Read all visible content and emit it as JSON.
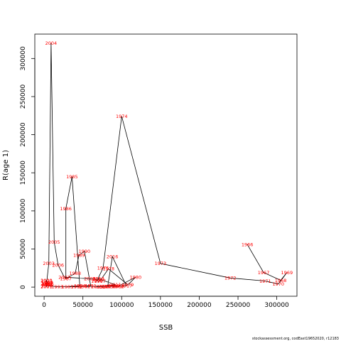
{
  "caption": "stockassessment.org, codEast19652020, r12183",
  "chart_data": {
    "type": "line",
    "xlabel": "SSB",
    "ylabel": "R(age 1)",
    "xlim": [
      -12000,
      326000
    ],
    "ylim": [
      -12000,
      332000
    ],
    "x_ticks": [
      0,
      50000,
      100000,
      150000,
      200000,
      250000,
      300000
    ],
    "x_tick_labels": [
      "0",
      "50000",
      "100000",
      "150000",
      "200000",
      "250000",
      "300000"
    ],
    "y_ticks": [
      0,
      50000,
      100000,
      150000,
      200000,
      250000,
      300000
    ],
    "y_tick_labels": [
      "0",
      "50000",
      "100000",
      "150000",
      "200000",
      "250000",
      "300000"
    ],
    "line_color": "#000000",
    "label_color": "#ff0000",
    "points": [
      {
        "year": "1966",
        "ssb": 262000,
        "r": 56000
      },
      {
        "year": "1967",
        "ssb": 283000,
        "r": 19000
      },
      {
        "year": "1968",
        "ssb": 305000,
        "r": 9000
      },
      {
        "year": "1969",
        "ssb": 313000,
        "r": 19000
      },
      {
        "year": "1970",
        "ssb": 302000,
        "r": 4000
      },
      {
        "year": "1971",
        "ssb": 285000,
        "r": 8000
      },
      {
        "year": "1972",
        "ssb": 240000,
        "r": 12000
      },
      {
        "year": "1973",
        "ssb": 150000,
        "r": 31000
      },
      {
        "year": "1974",
        "ssb": 100000,
        "r": 224000
      },
      {
        "year": "1975",
        "ssb": 76000,
        "r": 25000
      },
      {
        "year": "1976",
        "ssb": 68000,
        "r": 8000
      },
      {
        "year": "1977",
        "ssb": 72000,
        "r": 8000
      },
      {
        "year": "1978",
        "ssb": 83000,
        "r": 24000
      },
      {
        "year": "1979",
        "ssb": 108000,
        "r": 3000
      },
      {
        "year": "1980",
        "ssb": 118000,
        "r": 13000
      },
      {
        "year": "1981",
        "ssb": 95000,
        "r": 1000
      },
      {
        "year": "1982",
        "ssb": 52000,
        "r": 1000
      },
      {
        "year": "1983",
        "ssb": 30000,
        "r": 500
      },
      {
        "year": "1984",
        "ssb": 46000,
        "r": 2000
      },
      {
        "year": "1985",
        "ssb": 36000,
        "r": 145000
      },
      {
        "year": "1986",
        "ssb": 28000,
        "r": 103000
      },
      {
        "year": "1987",
        "ssb": 28000,
        "r": 11000
      },
      {
        "year": "1988",
        "ssb": 40000,
        "r": 18000
      },
      {
        "year": "1989",
        "ssb": 45000,
        "r": 42000
      },
      {
        "year": "1990",
        "ssb": 52000,
        "r": 47000
      },
      {
        "year": "1991",
        "ssb": 60000,
        "r": 2000
      },
      {
        "year": "1992",
        "ssb": 42000,
        "r": 500
      },
      {
        "year": "1993",
        "ssb": 17000,
        "r": 500
      },
      {
        "year": "1994",
        "ssb": 3000,
        "r": 2000
      },
      {
        "year": "1995",
        "ssb": 4000,
        "r": 3000
      },
      {
        "year": "1996",
        "ssb": 5000,
        "r": 4000
      },
      {
        "year": "1997",
        "ssb": 4000,
        "r": 5000
      },
      {
        "year": "1998",
        "ssb": 4000,
        "r": 6000
      },
      {
        "year": "1999",
        "ssb": 3000,
        "r": 8000
      },
      {
        "year": "2000",
        "ssb": 3000,
        "r": 9000
      },
      {
        "year": "2001",
        "ssb": 3000,
        "r": 500
      },
      {
        "year": "2002",
        "ssb": 3000,
        "r": 4000
      },
      {
        "year": "2003",
        "ssb": 6000,
        "r": 31000
      },
      {
        "year": "2004",
        "ssb": 9000,
        "r": 320000
      },
      {
        "year": "2005",
        "ssb": 13000,
        "r": 59000
      },
      {
        "year": "2006",
        "ssb": 18000,
        "r": 29000
      },
      {
        "year": "2007",
        "ssb": 26000,
        "r": 13000
      },
      {
        "year": "2008",
        "ssb": 59000,
        "r": 11000
      },
      {
        "year": "2009",
        "ssb": 70000,
        "r": 10000
      },
      {
        "year": "2010",
        "ssb": 70000,
        "r": 11000
      },
      {
        "year": "2011",
        "ssb": 92000,
        "r": 3000
      },
      {
        "year": "2012",
        "ssb": 78000,
        "r": 1000
      },
      {
        "year": "2013",
        "ssb": 68000,
        "r": 500
      },
      {
        "year": "2014",
        "ssb": 75000,
        "r": 500
      },
      {
        "year": "2015",
        "ssb": 82000,
        "r": 1000
      },
      {
        "year": "2016",
        "ssb": 88000,
        "r": 40000
      },
      {
        "year": "2017",
        "ssb": 106000,
        "r": 2000
      },
      {
        "year": "2018",
        "ssb": 96000,
        "r": 1000
      },
      {
        "year": "2019",
        "ssb": 90000,
        "r": 2000
      },
      {
        "year": "2020",
        "ssb": 84000,
        "r": 1000
      }
    ]
  }
}
